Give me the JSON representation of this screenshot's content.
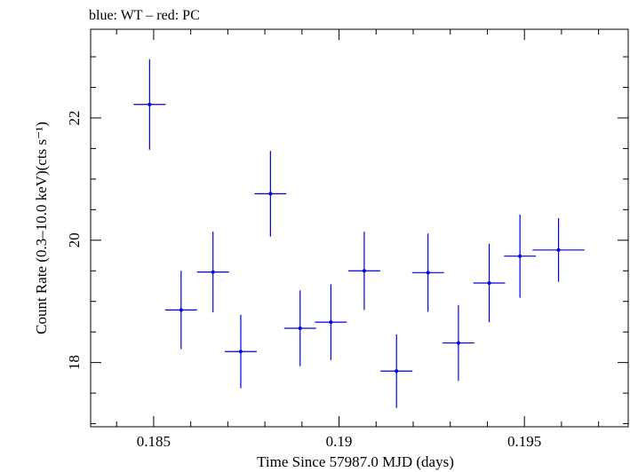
{
  "chart_data": {
    "type": "scatter",
    "title": "blue: WT – red: PC",
    "xlabel": "Time Since 57987.0 MJD (days)",
    "ylabel": "Count Rate (0.3–10.0 keV)(cts s⁻¹)",
    "xlim": [
      0.1833,
      0.1978
    ],
    "ylim": [
      16.95,
      23.45
    ],
    "xticks": [
      0.185,
      0.19,
      0.195
    ],
    "xtick_labels": [
      "0.185",
      "0.19",
      "0.195"
    ],
    "yticks": [
      18,
      20,
      22
    ],
    "ytick_labels": [
      "18",
      "20",
      "22"
    ],
    "grid": false,
    "series": [
      {
        "color": "#0000dd",
        "points": [
          {
            "x": 0.18489,
            "y": 22.22,
            "xerr": 0.00043,
            "yerr": 0.74
          },
          {
            "x": 0.18574,
            "y": 18.86,
            "xerr": 0.00043,
            "yerr": 0.64
          },
          {
            "x": 0.1866,
            "y": 19.48,
            "xerr": 0.00043,
            "yerr": 0.66
          },
          {
            "x": 0.18735,
            "y": 18.18,
            "xerr": 0.00043,
            "yerr": 0.6
          },
          {
            "x": 0.18815,
            "y": 20.76,
            "xerr": 0.00043,
            "yerr": 0.7
          },
          {
            "x": 0.18895,
            "y": 18.56,
            "xerr": 0.00043,
            "yerr": 0.62
          },
          {
            "x": 0.18978,
            "y": 18.66,
            "xerr": 0.00043,
            "yerr": 0.62
          },
          {
            "x": 0.19068,
            "y": 19.5,
            "xerr": 0.00043,
            "yerr": 0.64
          },
          {
            "x": 0.19155,
            "y": 17.86,
            "xerr": 0.00043,
            "yerr": 0.6
          },
          {
            "x": 0.1924,
            "y": 19.47,
            "xerr": 0.00043,
            "yerr": 0.64
          },
          {
            "x": 0.19322,
            "y": 18.32,
            "xerr": 0.00043,
            "yerr": 0.62
          },
          {
            "x": 0.19405,
            "y": 19.3,
            "xerr": 0.00043,
            "yerr": 0.64
          },
          {
            "x": 0.19488,
            "y": 19.74,
            "xerr": 0.00043,
            "yerr": 0.68
          },
          {
            "x": 0.19592,
            "y": 19.84,
            "xerr": 0.0007,
            "yerr": 0.52
          }
        ]
      }
    ]
  }
}
